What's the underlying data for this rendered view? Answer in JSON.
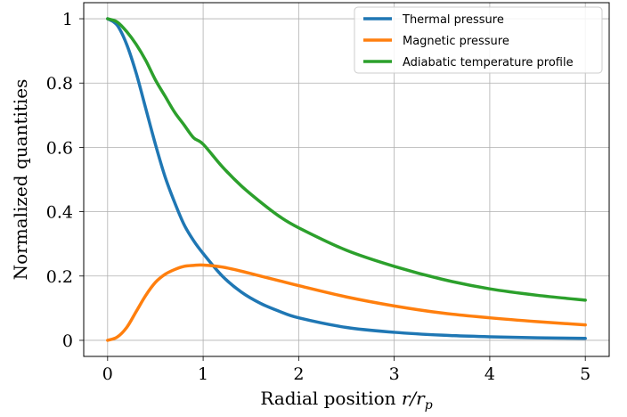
{
  "chart_data": {
    "type": "line",
    "xlabel": "Radial position r/r_p",
    "xlabel_parts": {
      "text": "Radial position ",
      "math": "r/r",
      "sub": "p"
    },
    "ylabel": "Normalized quantities",
    "xlim": [
      -0.25,
      5.25
    ],
    "ylim": [
      -0.05,
      1.05
    ],
    "xticks": [
      0,
      1,
      2,
      3,
      4,
      5
    ],
    "xtick_labels": [
      "0",
      "1",
      "2",
      "3",
      "4",
      "5"
    ],
    "yticks": [
      0,
      0.2,
      0.4,
      0.6,
      0.8,
      1
    ],
    "ytick_labels": [
      "0",
      "0.2",
      "0.4",
      "0.6",
      "0.8",
      "1"
    ],
    "grid": true,
    "legend_position": "top-right",
    "series": [
      {
        "name": "Thermal pressure",
        "color": "#1f77b4",
        "x": [
          0,
          0.1,
          0.2,
          0.3,
          0.4,
          0.5,
          0.6,
          0.7,
          0.8,
          0.9,
          1.0,
          1.2,
          1.4,
          1.6,
          1.8,
          2.0,
          2.5,
          3.0,
          3.5,
          4.0,
          4.5,
          5.0
        ],
        "y": [
          1.0,
          0.98,
          0.92,
          0.83,
          0.72,
          0.61,
          0.51,
          0.43,
          0.36,
          0.31,
          0.27,
          0.2,
          0.15,
          0.115,
          0.09,
          0.07,
          0.04,
          0.025,
          0.016,
          0.011,
          0.008,
          0.006
        ]
      },
      {
        "name": "Magnetic pressure",
        "color": "#ff7f0e",
        "x": [
          0,
          0.1,
          0.2,
          0.3,
          0.4,
          0.5,
          0.6,
          0.7,
          0.8,
          0.9,
          1.0,
          1.2,
          1.4,
          1.6,
          1.8,
          2.0,
          2.5,
          3.0,
          3.5,
          4.0,
          4.5,
          5.0
        ],
        "y": [
          0.0,
          0.01,
          0.04,
          0.09,
          0.14,
          0.18,
          0.205,
          0.22,
          0.23,
          0.233,
          0.234,
          0.228,
          0.215,
          0.2,
          0.185,
          0.17,
          0.135,
          0.107,
          0.085,
          0.07,
          0.058,
          0.048
        ]
      },
      {
        "name": "Adiabatic temperature profile",
        "color": "#2ca02c",
        "x": [
          0,
          0.1,
          0.2,
          0.3,
          0.4,
          0.5,
          0.6,
          0.7,
          0.8,
          0.9,
          1.0,
          1.2,
          1.4,
          1.6,
          1.8,
          2.0,
          2.5,
          3.0,
          3.5,
          4.0,
          4.5,
          5.0
        ],
        "y": [
          1.0,
          0.99,
          0.96,
          0.92,
          0.87,
          0.81,
          0.76,
          0.71,
          0.67,
          0.63,
          0.61,
          0.54,
          0.48,
          0.43,
          0.385,
          0.35,
          0.28,
          0.23,
          0.19,
          0.16,
          0.14,
          0.125
        ]
      }
    ]
  }
}
